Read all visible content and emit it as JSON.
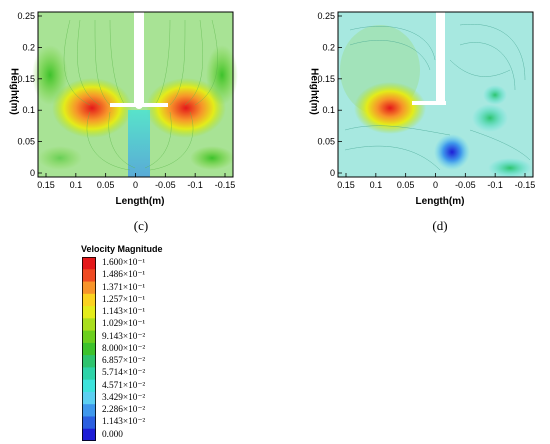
{
  "panels": [
    {
      "id": "c",
      "caption": "(c)",
      "ylabel": "Height(m)",
      "xlabel": "Length(m)",
      "x_ticks": [
        "0.15",
        "0.1",
        "0.05",
        "0",
        "-0.05",
        "-0.1",
        "-0.15"
      ],
      "y_ticks": [
        "0",
        "0.05",
        "0.1",
        "0.15",
        "0.2",
        "0.25"
      ]
    },
    {
      "id": "d",
      "caption": "(d)",
      "ylabel": "Height(m)",
      "xlabel": "Length(m)",
      "x_ticks": [
        "0.15",
        "0.1",
        "0.05",
        "0",
        "-0.05",
        "-0.1",
        "-0.15"
      ],
      "y_ticks": [
        "0",
        "0.05",
        "0.1",
        "0.15",
        "0.2",
        "0.25"
      ]
    }
  ],
  "legend": {
    "title": "Velocity Magnitude",
    "levels": [
      {
        "label": "1.600×10⁻¹",
        "color": "#e4181a"
      },
      {
        "label": "1.486×10⁻¹",
        "color": "#ef4a22"
      },
      {
        "label": "1.371×10⁻¹",
        "color": "#f7942a"
      },
      {
        "label": "1.257×10⁻¹",
        "color": "#fbd21f"
      },
      {
        "label": "1.143×10⁻¹",
        "color": "#e4ec1a"
      },
      {
        "label": "1.029×10⁻¹",
        "color": "#a9de1d"
      },
      {
        "label": "9.143×10⁻²",
        "color": "#6ccf1e"
      },
      {
        "label": "8.000×10⁻²",
        "color": "#3dc22c"
      },
      {
        "label": "6.857×10⁻²",
        "color": "#2ec46e"
      },
      {
        "label": "5.714×10⁻²",
        "color": "#2ed3a8"
      },
      {
        "label": "4.571×10⁻²",
        "color": "#3de3dc"
      },
      {
        "label": "3.429×10⁻²",
        "color": "#5cd0f2"
      },
      {
        "label": "2.286×10⁻²",
        "color": "#3f98ec"
      },
      {
        "label": "1.143×10⁻²",
        "color": "#2b5fe0"
      },
      {
        "label": "0.000",
        "color": "#1d1dd6"
      }
    ]
  }
}
